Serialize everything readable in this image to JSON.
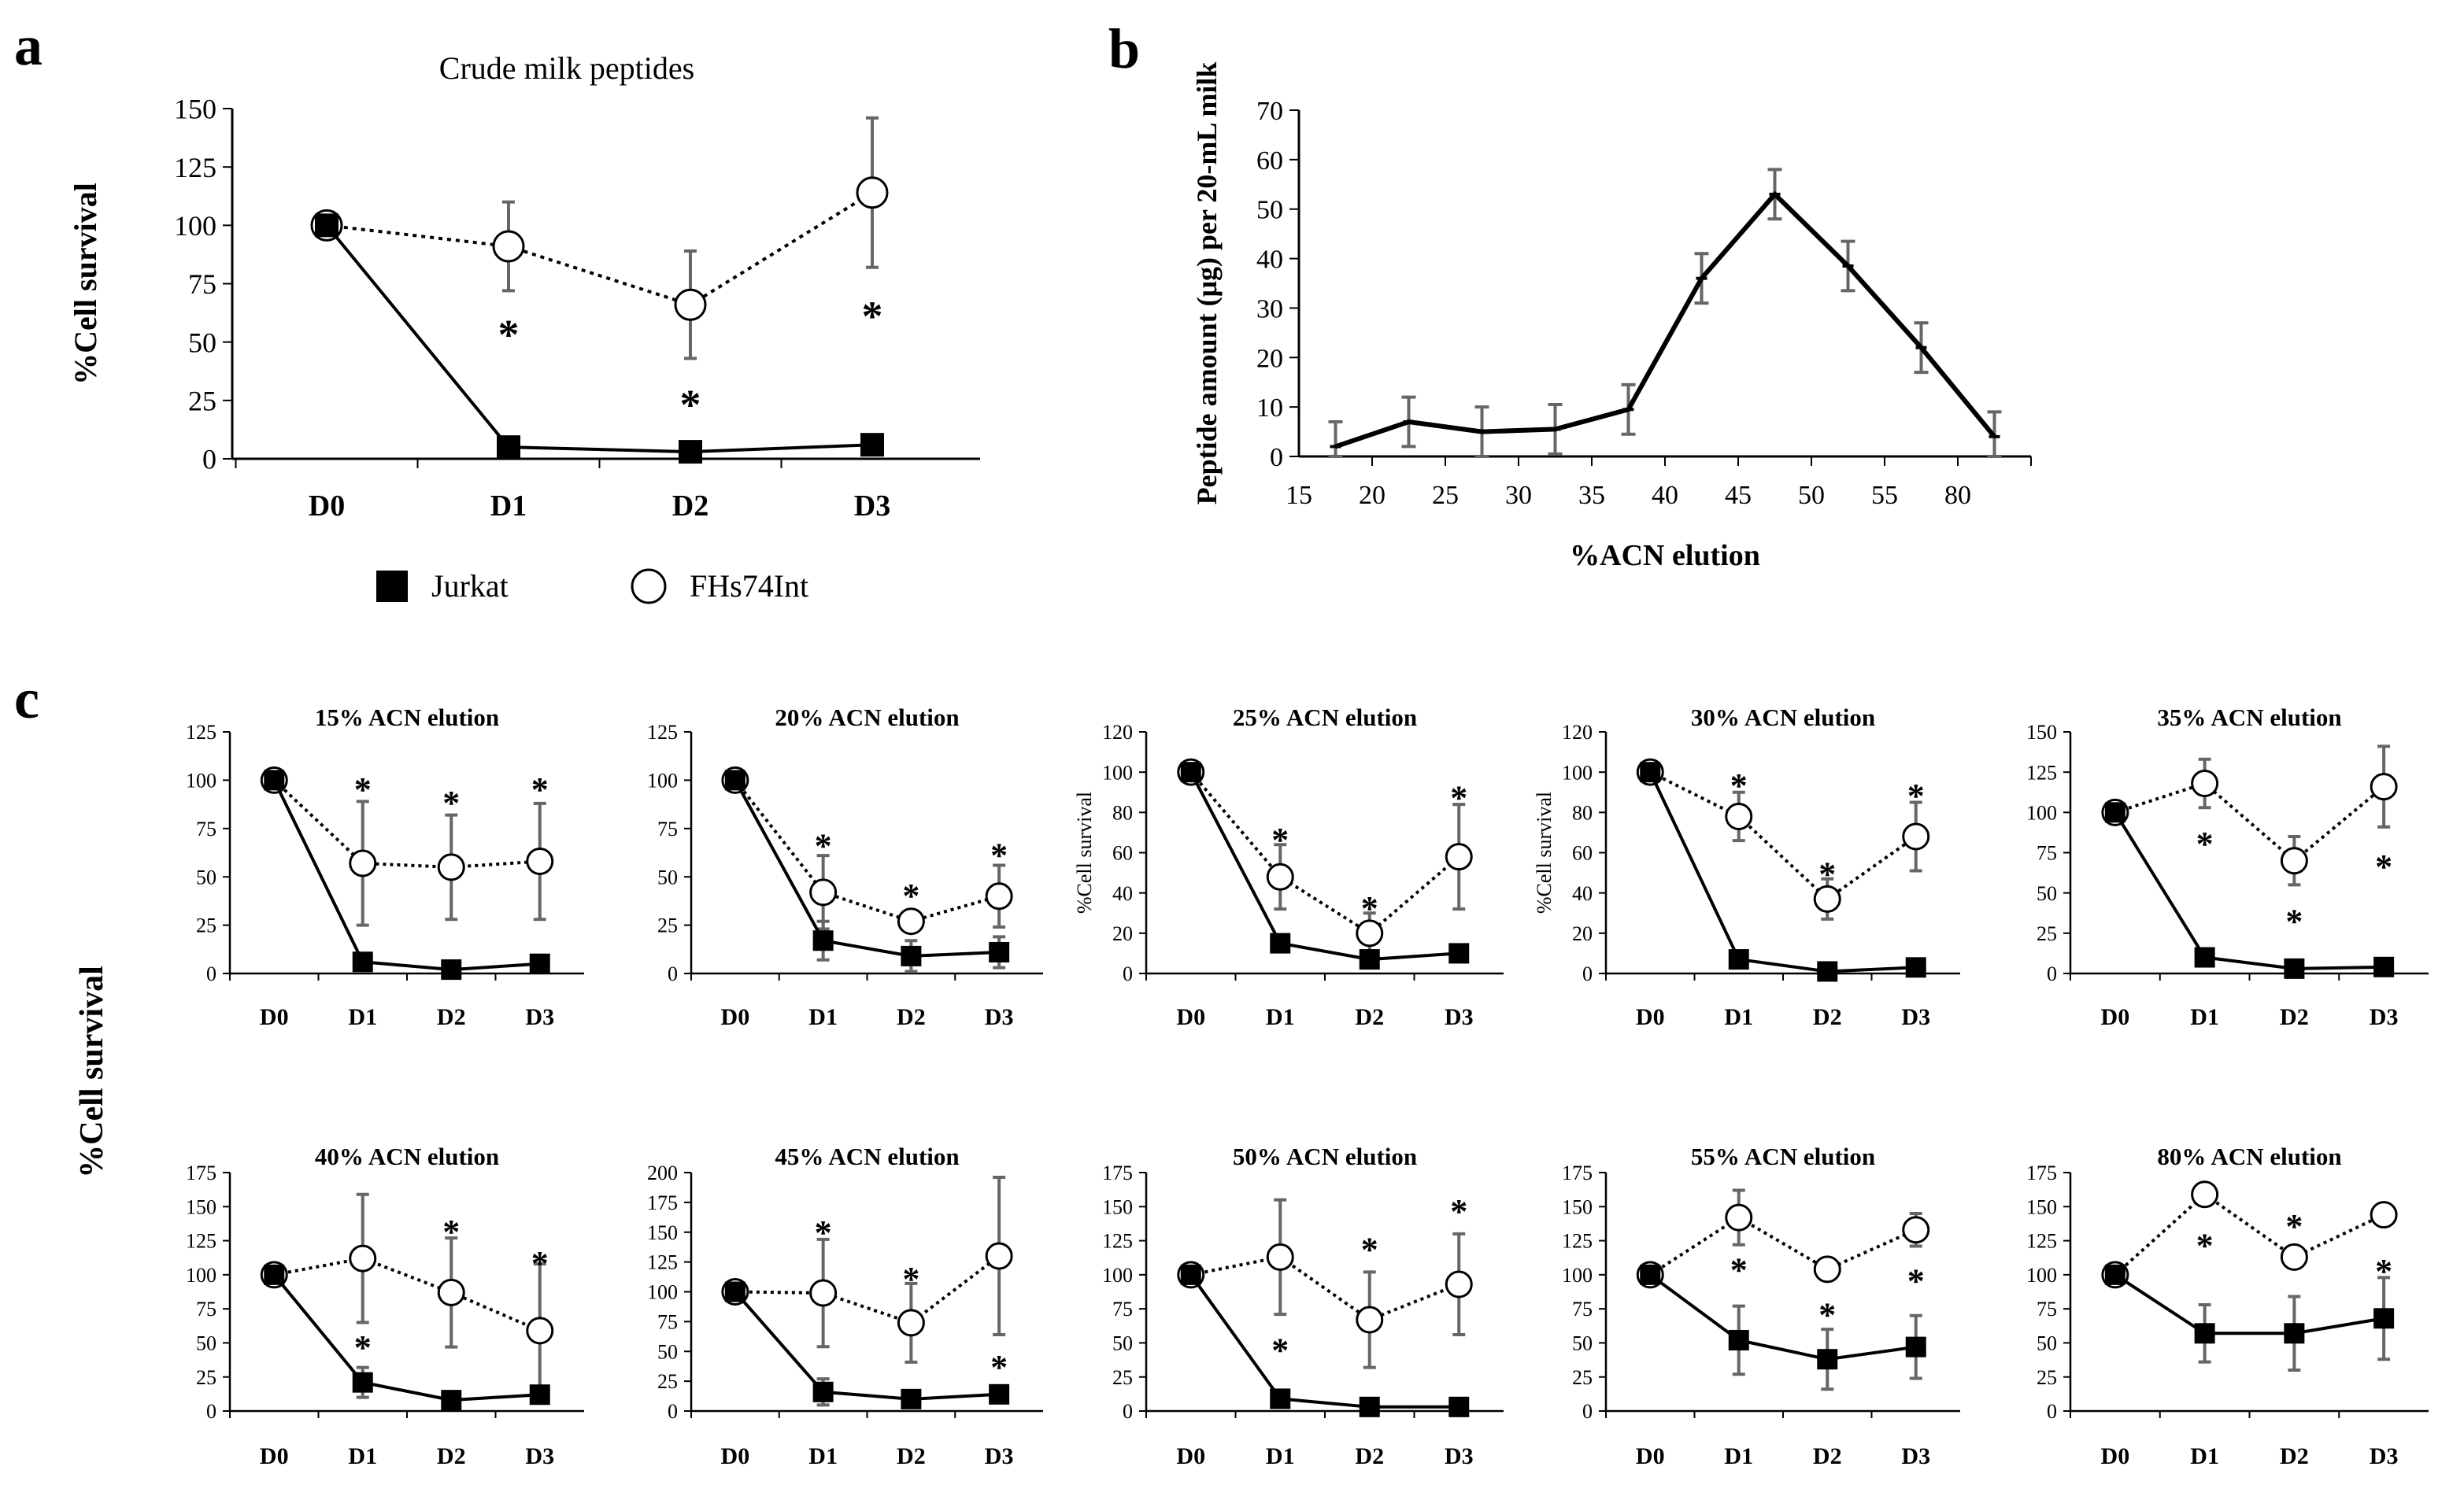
{
  "figure": {
    "panel_labels": [
      "a",
      "b",
      "c"
    ],
    "shared_ylabel": "%Cell survival"
  },
  "legend": {
    "items": [
      {
        "label": "Jurkat",
        "marker": "filled-square"
      },
      {
        "label": "FHs74Int",
        "marker": "open-circle"
      }
    ]
  },
  "colors": {
    "line": "#000000",
    "error_bar": "#666666",
    "axis": "#000000",
    "marker_fill_open": "#ffffff",
    "marker_fill_filled": "#000000"
  },
  "chart_data": [
    {
      "id": "a",
      "type": "line",
      "title": "Crude milk peptides",
      "xlabel": "",
      "ylabel": "%Cell survival",
      "categories": [
        "D0",
        "D1",
        "D2",
        "D3"
      ],
      "ylim": [
        0,
        150
      ],
      "yticks": [
        0,
        25,
        50,
        75,
        100,
        125,
        150
      ],
      "series": [
        {
          "name": "Jurkat",
          "values": [
            100,
            5,
            3,
            6
          ],
          "errors": [
            0,
            0,
            0,
            0
          ]
        },
        {
          "name": "FHs74Int",
          "values": [
            100,
            91,
            66,
            114
          ],
          "errors": [
            0,
            19,
            23,
            32
          ]
        }
      ],
      "annotations": [
        {
          "category": "D1",
          "value": 57,
          "text": "*"
        },
        {
          "category": "D2",
          "value": 27,
          "text": "*"
        },
        {
          "category": "D3",
          "value": 65,
          "text": "*"
        }
      ]
    },
    {
      "id": "b",
      "type": "line",
      "title": "",
      "xlabel": "%ACN elution",
      "ylabel": "Peptide amount (μg) per 20-mL milk",
      "categories": [
        "15",
        "20",
        "25",
        "30",
        "35",
        "40",
        "45",
        "50",
        "55",
        "80"
      ],
      "ylim": [
        0,
        70
      ],
      "yticks": [
        0,
        10,
        20,
        30,
        40,
        50,
        60,
        70
      ],
      "series": [
        {
          "name": "",
          "values": [
            2,
            7,
            5,
            5.5,
            9.5,
            36,
            53,
            38.5,
            22,
            4
          ],
          "errors": [
            5,
            5,
            5,
            5,
            5,
            5,
            5,
            5,
            5,
            5
          ]
        }
      ]
    },
    {
      "id": "c1",
      "type": "line",
      "title": "15% ACN elution",
      "xlabel": "",
      "ylabel": "",
      "categories": [
        "D0",
        "D1",
        "D2",
        "D3"
      ],
      "ylim": [
        0,
        125
      ],
      "yticks": [
        0,
        25,
        50,
        75,
        100,
        125
      ],
      "series": [
        {
          "name": "Jurkat",
          "values": [
            100,
            6,
            2,
            5
          ],
          "errors": [
            0,
            0,
            0,
            0
          ]
        },
        {
          "name": "FHs74Int",
          "values": [
            100,
            57,
            55,
            58
          ],
          "errors": [
            0,
            32,
            27,
            30
          ]
        }
      ],
      "annotations": [
        {
          "category": "D1",
          "value": 99,
          "text": "*"
        },
        {
          "category": "D2",
          "value": 92,
          "text": "*"
        },
        {
          "category": "D3",
          "value": 99,
          "text": "*"
        }
      ]
    },
    {
      "id": "c2",
      "type": "line",
      "title": "20% ACN elution",
      "xlabel": "",
      "ylabel": "",
      "categories": [
        "D0",
        "D1",
        "D2",
        "D3"
      ],
      "ylim": [
        0,
        125
      ],
      "yticks": [
        0,
        25,
        50,
        75,
        100,
        125
      ],
      "series": [
        {
          "name": "Jurkat",
          "values": [
            100,
            17,
            9,
            11
          ],
          "errors": [
            0,
            10,
            8,
            8
          ]
        },
        {
          "name": "FHs74Int",
          "values": [
            100,
            42,
            27,
            40
          ],
          "errors": [
            0,
            19,
            0,
            16
          ]
        }
      ],
      "annotations": [
        {
          "category": "D1",
          "value": 70,
          "text": "*"
        },
        {
          "category": "D2",
          "value": 44,
          "text": "*"
        },
        {
          "category": "D3",
          "value": 65,
          "text": "*"
        }
      ]
    },
    {
      "id": "c3",
      "type": "line",
      "title": "25% ACN elution",
      "xlabel": "",
      "ylabel": "%Cell survival",
      "categories": [
        "D0",
        "D1",
        "D2",
        "D3"
      ],
      "ylim": [
        0,
        120
      ],
      "yticks": [
        0,
        20,
        40,
        60,
        80,
        100,
        120
      ],
      "series": [
        {
          "name": "Jurkat",
          "values": [
            100,
            15,
            7,
            10
          ],
          "errors": [
            0,
            0,
            0,
            0
          ]
        },
        {
          "name": "FHs74Int",
          "values": [
            100,
            48,
            20,
            58
          ],
          "errors": [
            0,
            16,
            10,
            26
          ]
        }
      ],
      "annotations": [
        {
          "category": "D1",
          "value": 70,
          "text": "*"
        },
        {
          "category": "D2",
          "value": 36,
          "text": "*"
        },
        {
          "category": "D3",
          "value": 91,
          "text": "*"
        }
      ]
    },
    {
      "id": "c4",
      "type": "line",
      "title": "30% ACN elution",
      "xlabel": "",
      "ylabel": "%Cell survival",
      "categories": [
        "D0",
        "D1",
        "D2",
        "D3"
      ],
      "ylim": [
        0,
        120
      ],
      "yticks": [
        0,
        20,
        40,
        60,
        80,
        100,
        120
      ],
      "series": [
        {
          "name": "Jurkat",
          "values": [
            100,
            7,
            1,
            3
          ],
          "errors": [
            0,
            0,
            0,
            0
          ]
        },
        {
          "name": "FHs74Int",
          "values": [
            100,
            78,
            37,
            68
          ],
          "errors": [
            0,
            12,
            10,
            17
          ]
        }
      ],
      "annotations": [
        {
          "category": "D1",
          "value": 97,
          "text": "*"
        },
        {
          "category": "D2",
          "value": 53,
          "text": "*"
        },
        {
          "category": "D3",
          "value": 92,
          "text": "*"
        }
      ]
    },
    {
      "id": "c5",
      "type": "line",
      "title": "35% ACN elution",
      "xlabel": "",
      "ylabel": "",
      "categories": [
        "D0",
        "D1",
        "D2",
        "D3"
      ],
      "ylim": [
        0,
        150
      ],
      "yticks": [
        0,
        25,
        50,
        75,
        100,
        125,
        150
      ],
      "series": [
        {
          "name": "Jurkat",
          "values": [
            100,
            10,
            3,
            4
          ],
          "errors": [
            0,
            0,
            0,
            0
          ]
        },
        {
          "name": "FHs74Int",
          "values": [
            100,
            118,
            70,
            116
          ],
          "errors": [
            0,
            15,
            15,
            25
          ]
        }
      ],
      "annotations": [
        {
          "category": "D1",
          "value": 85,
          "text": "*"
        },
        {
          "category": "D2",
          "value": 37,
          "text": "*"
        },
        {
          "category": "D3",
          "value": 71,
          "text": "*"
        }
      ]
    },
    {
      "id": "c6",
      "type": "line",
      "title": "40% ACN elution",
      "xlabel": "",
      "ylabel": "",
      "categories": [
        "D0",
        "D1",
        "D2",
        "D3"
      ],
      "ylim": [
        0,
        175
      ],
      "yticks": [
        0,
        25,
        50,
        75,
        100,
        125,
        150,
        175
      ],
      "series": [
        {
          "name": "Jurkat",
          "values": [
            100,
            21,
            8,
            12
          ],
          "errors": [
            0,
            11,
            0,
            0
          ]
        },
        {
          "name": "FHs74Int",
          "values": [
            100,
            112,
            87,
            59
          ],
          "errors": [
            0,
            47,
            40,
            49
          ]
        }
      ],
      "annotations": [
        {
          "category": "D1",
          "value": 52,
          "text": "*"
        },
        {
          "category": "D2",
          "value": 137,
          "text": "*"
        },
        {
          "category": "D3",
          "value": 114,
          "text": "*"
        }
      ]
    },
    {
      "id": "c7",
      "type": "line",
      "title": "45% ACN elution",
      "xlabel": "",
      "ylabel": "",
      "categories": [
        "D0",
        "D1",
        "D2",
        "D3"
      ],
      "ylim": [
        0,
        200
      ],
      "yticks": [
        0,
        25,
        50,
        75,
        100,
        125,
        150,
        175,
        200
      ],
      "series": [
        {
          "name": "Jurkat",
          "values": [
            100,
            16,
            10,
            14
          ],
          "errors": [
            0,
            11,
            0,
            0
          ]
        },
        {
          "name": "FHs74Int",
          "values": [
            100,
            99,
            74,
            130
          ],
          "errors": [
            0,
            45,
            33,
            66
          ]
        }
      ],
      "annotations": [
        {
          "category": "D1",
          "value": 156,
          "text": "*"
        },
        {
          "category": "D2",
          "value": 117,
          "text": "*"
        },
        {
          "category": "D3",
          "value": 43,
          "text": "*"
        }
      ]
    },
    {
      "id": "c8",
      "type": "line",
      "title": "50% ACN elution",
      "xlabel": "",
      "ylabel": "",
      "categories": [
        "D0",
        "D1",
        "D2",
        "D3"
      ],
      "ylim": [
        0,
        175
      ],
      "yticks": [
        0,
        25,
        50,
        75,
        100,
        125,
        150,
        175
      ],
      "series": [
        {
          "name": "Jurkat",
          "values": [
            100,
            9,
            3,
            3
          ],
          "errors": [
            0,
            0,
            0,
            0
          ]
        },
        {
          "name": "FHs74Int",
          "values": [
            100,
            113,
            67,
            93
          ],
          "errors": [
            0,
            42,
            35,
            37
          ]
        }
      ],
      "annotations": [
        {
          "category": "D1",
          "value": 50,
          "text": "*"
        },
        {
          "category": "D2",
          "value": 124,
          "text": "*"
        },
        {
          "category": "D3",
          "value": 152,
          "text": "*"
        }
      ]
    },
    {
      "id": "c9",
      "type": "line",
      "title": "55% ACN elution",
      "xlabel": "",
      "ylabel": "",
      "categories": [
        "D0",
        "D1",
        "D2",
        "D3"
      ],
      "ylim": [
        0,
        175
      ],
      "yticks": [
        0,
        25,
        50,
        75,
        100,
        125,
        150,
        175
      ],
      "series": [
        {
          "name": "Jurkat",
          "values": [
            100,
            52,
            38,
            47
          ],
          "errors": [
            0,
            25,
            22,
            23
          ]
        },
        {
          "name": "FHs74Int",
          "values": [
            100,
            142,
            104,
            133
          ],
          "errors": [
            0,
            20,
            0,
            12
          ]
        }
      ],
      "annotations": [
        {
          "category": "D1",
          "value": 109,
          "text": "*"
        },
        {
          "category": "D2",
          "value": 76,
          "text": "*"
        },
        {
          "category": "D3",
          "value": 101,
          "text": "*"
        }
      ]
    },
    {
      "id": "c10",
      "type": "line",
      "title": "80% ACN elution",
      "xlabel": "",
      "ylabel": "",
      "categories": [
        "D0",
        "D1",
        "D2",
        "D3"
      ],
      "ylim": [
        0,
        175
      ],
      "yticks": [
        0,
        25,
        50,
        75,
        100,
        125,
        150,
        175
      ],
      "series": [
        {
          "name": "Jurkat",
          "values": [
            100,
            57,
            57,
            68
          ],
          "errors": [
            0,
            21,
            27,
            30
          ]
        },
        {
          "name": "FHs74Int",
          "values": [
            100,
            159,
            113,
            144
          ],
          "errors": [
            0,
            0,
            0,
            0
          ]
        }
      ],
      "annotations": [
        {
          "category": "D1",
          "value": 127,
          "text": "*"
        },
        {
          "category": "D2",
          "value": 141,
          "text": "*"
        },
        {
          "category": "D3",
          "value": 108,
          "text": "*"
        }
      ]
    }
  ]
}
